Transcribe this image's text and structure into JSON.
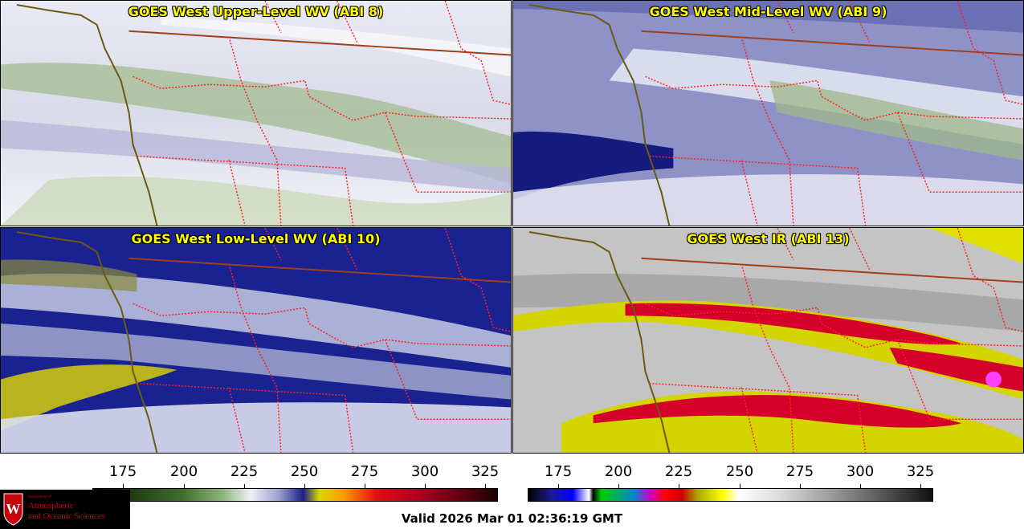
{
  "panels": [
    {
      "title": "GOES West Upper-Level WV (ABI 8)"
    },
    {
      "title": "GOES West Mid-Level WV (ABI 9)"
    },
    {
      "title": "GOES West Low-Level WV (ABI 10)"
    },
    {
      "title": "GOES West IR (ABI 13)"
    }
  ],
  "colorbar_wv": {
    "ticks": [
      "175",
      "200",
      "225",
      "250",
      "275",
      "300",
      "325"
    ]
  },
  "colorbar_ir": {
    "ticks": [
      "175",
      "200",
      "225",
      "250",
      "275",
      "300",
      "325"
    ]
  },
  "logo": {
    "small": "Department of",
    "line1": "Atmospheric",
    "line2": "and Oceanic Sciences",
    "crest": "W"
  },
  "valid_time": "Valid 2026 Mar 01 02:36:19 GMT",
  "colors": {
    "title": "#ffff00",
    "state_borders": "#ff2020",
    "coastline": "#6b5a10",
    "logo_red": "#c5050c"
  }
}
